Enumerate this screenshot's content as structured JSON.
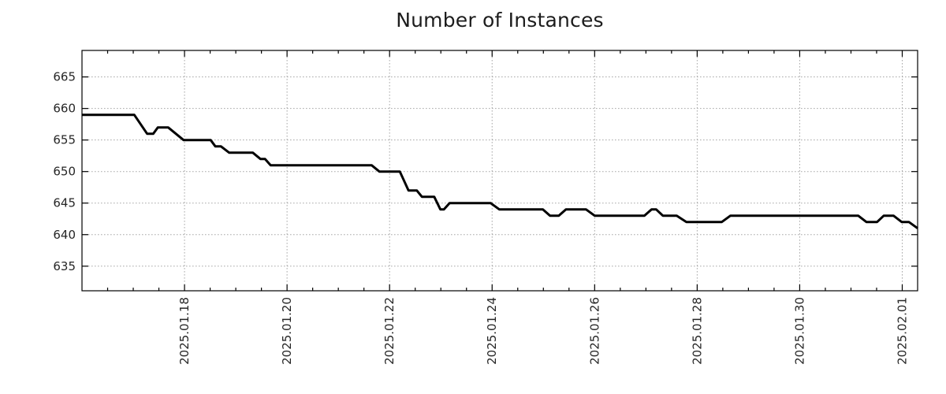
{
  "chart_data": {
    "type": "line",
    "title": "Number of Instances",
    "series_name": "instances",
    "legend": "none",
    "grid": "dotted-major-both-axes",
    "x_unit": "days since 2025-01-16 00:00",
    "x_range": [
      0,
      16.3
    ],
    "y_range": [
      631.1,
      669.2
    ],
    "y_ticks": [
      635,
      640,
      645,
      650,
      655,
      660,
      665
    ],
    "x_major_ticks": [
      {
        "t": 2,
        "label": "2025.01.18"
      },
      {
        "t": 4,
        "label": "2025.01.20"
      },
      {
        "t": 6,
        "label": "2025.01.22"
      },
      {
        "t": 8,
        "label": "2025.01.24"
      },
      {
        "t": 10,
        "label": "2025.01.26"
      },
      {
        "t": 12,
        "label": "2025.01.28"
      },
      {
        "t": 14,
        "label": "2025.01.30"
      },
      {
        "t": 16,
        "label": "2025.02.01"
      }
    ],
    "x_minor_step": 0.5,
    "points": [
      [
        0.0,
        659
      ],
      [
        1.02,
        659
      ],
      [
        1.27,
        656
      ],
      [
        1.39,
        656
      ],
      [
        1.48,
        657
      ],
      [
        1.68,
        657
      ],
      [
        1.98,
        655
      ],
      [
        2.51,
        655
      ],
      [
        2.6,
        654
      ],
      [
        2.71,
        654
      ],
      [
        2.87,
        653
      ],
      [
        3.33,
        653
      ],
      [
        3.48,
        652
      ],
      [
        3.57,
        652
      ],
      [
        3.68,
        651
      ],
      [
        5.65,
        651
      ],
      [
        5.8,
        650
      ],
      [
        6.2,
        650
      ],
      [
        6.37,
        647
      ],
      [
        6.53,
        647
      ],
      [
        6.63,
        646
      ],
      [
        6.87,
        646
      ],
      [
        6.99,
        644
      ],
      [
        7.06,
        644
      ],
      [
        7.17,
        645
      ],
      [
        7.97,
        645
      ],
      [
        8.14,
        644
      ],
      [
        8.99,
        644
      ],
      [
        9.13,
        643
      ],
      [
        9.3,
        643
      ],
      [
        9.44,
        644
      ],
      [
        9.83,
        644
      ],
      [
        10.0,
        643
      ],
      [
        10.97,
        643
      ],
      [
        11.11,
        644
      ],
      [
        11.2,
        644
      ],
      [
        11.33,
        643
      ],
      [
        11.6,
        643
      ],
      [
        11.79,
        642
      ],
      [
        12.48,
        642
      ],
      [
        12.65,
        643
      ],
      [
        15.14,
        643
      ],
      [
        15.3,
        642
      ],
      [
        15.51,
        642
      ],
      [
        15.64,
        643
      ],
      [
        15.83,
        643
      ],
      [
        15.99,
        642
      ],
      [
        16.13,
        642
      ],
      [
        16.3,
        641
      ]
    ],
    "colors": {
      "line": "#000000",
      "frame": "#000000",
      "grid": "#a8a8a8",
      "text": "#262626",
      "title": "#1c1c1c",
      "background": "#ffffff"
    },
    "line_width": 3
  },
  "layout_values": {
    "y_label_font_px": 15,
    "x_label_font_px": 15
  }
}
